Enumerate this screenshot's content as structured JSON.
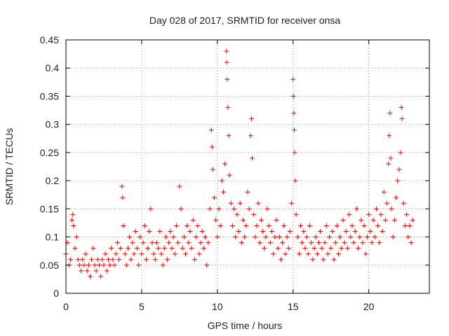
{
  "chart_data": {
    "type": "scatter",
    "title": "Day 028 of 2017, SRMTID for receiver onsa",
    "xlabel": "GPS time / hours",
    "ylabel": "SRMTID / TECUs",
    "xlim": [
      0,
      24
    ],
    "ylim": [
      0,
      0.45
    ],
    "xticks": [
      0,
      5,
      10,
      15,
      20
    ],
    "xtick_labels": [
      "0",
      "5",
      "10",
      "15",
      "20"
    ],
    "yticks": [
      0,
      0.05,
      0.1,
      0.15,
      0.2,
      0.25,
      0.3,
      0.35,
      0.4,
      0.45
    ],
    "ytick_labels": [
      "0",
      "0.05",
      "0.1",
      "0.15",
      "0.2",
      "0.25",
      "0.3",
      "0.35",
      "0.4",
      "0.45"
    ],
    "grid": true,
    "marker": "+",
    "color": "#ff0000",
    "series": [
      {
        "name": "SRMTID",
        "points": [
          [
            0.0,
            0.07
          ],
          [
            0.1,
            0.09
          ],
          [
            0.2,
            0.05
          ],
          [
            0.3,
            0.06
          ],
          [
            0.4,
            0.13
          ],
          [
            0.45,
            0.14
          ],
          [
            0.5,
            0.12
          ],
          [
            0.6,
            0.08
          ],
          [
            0.7,
            0.1
          ],
          [
            0.8,
            0.06
          ],
          [
            0.9,
            0.05
          ],
          [
            1.0,
            0.04
          ],
          [
            1.1,
            0.06
          ],
          [
            1.2,
            0.05
          ],
          [
            1.3,
            0.07
          ],
          [
            1.4,
            0.04
          ],
          [
            1.5,
            0.05
          ],
          [
            1.6,
            0.03
          ],
          [
            1.7,
            0.06
          ],
          [
            1.8,
            0.08
          ],
          [
            1.9,
            0.05
          ],
          [
            2.0,
            0.04
          ],
          [
            2.1,
            0.06
          ],
          [
            2.2,
            0.05
          ],
          [
            2.3,
            0.03
          ],
          [
            2.4,
            0.06
          ],
          [
            2.5,
            0.05
          ],
          [
            2.6,
            0.07
          ],
          [
            2.7,
            0.04
          ],
          [
            2.8,
            0.06
          ],
          [
            2.9,
            0.05
          ],
          [
            3.0,
            0.08
          ],
          [
            3.1,
            0.06
          ],
          [
            3.2,
            0.05
          ],
          [
            3.3,
            0.07
          ],
          [
            3.4,
            0.09
          ],
          [
            3.5,
            0.06
          ],
          [
            3.6,
            0.08
          ],
          [
            3.7,
            0.19
          ],
          [
            3.75,
            0.17
          ],
          [
            3.8,
            0.12
          ],
          [
            3.9,
            0.07
          ],
          [
            4.0,
            0.05
          ],
          [
            4.1,
            0.08
          ],
          [
            4.2,
            0.1
          ],
          [
            4.3,
            0.06
          ],
          [
            4.4,
            0.09
          ],
          [
            4.5,
            0.07
          ],
          [
            4.6,
            0.11
          ],
          [
            4.7,
            0.08
          ],
          [
            4.8,
            0.05
          ],
          [
            4.9,
            0.1
          ],
          [
            5.0,
            0.07
          ],
          [
            5.1,
            0.09
          ],
          [
            5.2,
            0.12
          ],
          [
            5.3,
            0.06
          ],
          [
            5.4,
            0.08
          ],
          [
            5.5,
            0.11
          ],
          [
            5.6,
            0.15
          ],
          [
            5.7,
            0.09
          ],
          [
            5.8,
            0.07
          ],
          [
            5.9,
            0.06
          ],
          [
            6.0,
            0.09
          ],
          [
            6.1,
            0.08
          ],
          [
            6.2,
            0.11
          ],
          [
            6.3,
            0.07
          ],
          [
            6.4,
            0.05
          ],
          [
            6.5,
            0.08
          ],
          [
            6.6,
            0.1
          ],
          [
            6.7,
            0.06
          ],
          [
            6.8,
            0.09
          ],
          [
            6.9,
            0.11
          ],
          [
            7.0,
            0.08
          ],
          [
            7.1,
            0.1
          ],
          [
            7.2,
            0.07
          ],
          [
            7.3,
            0.12
          ],
          [
            7.4,
            0.09
          ],
          [
            7.5,
            0.19
          ],
          [
            7.6,
            0.15
          ],
          [
            7.7,
            0.08
          ],
          [
            7.8,
            0.1
          ],
          [
            7.9,
            0.07
          ],
          [
            8.0,
            0.12
          ],
          [
            8.1,
            0.09
          ],
          [
            8.2,
            0.11
          ],
          [
            8.3,
            0.08
          ],
          [
            8.4,
            0.13
          ],
          [
            8.5,
            0.06
          ],
          [
            8.6,
            0.1
          ],
          [
            8.7,
            0.12
          ],
          [
            8.8,
            0.07
          ],
          [
            8.9,
            0.09
          ],
          [
            9.0,
            0.11
          ],
          [
            9.1,
            0.08
          ],
          [
            9.2,
            0.1
          ],
          [
            9.3,
            0.05
          ],
          [
            9.4,
            0.09
          ],
          [
            9.5,
            0.15
          ],
          [
            9.6,
            0.29
          ],
          [
            9.65,
            0.26
          ],
          [
            9.7,
            0.22
          ],
          [
            9.8,
            0.17
          ],
          [
            9.9,
            0.13
          ],
          [
            10.0,
            0.1
          ],
          [
            10.1,
            0.15
          ],
          [
            10.2,
            0.12
          ],
          [
            10.3,
            0.2
          ],
          [
            10.4,
            0.18
          ],
          [
            10.5,
            0.23
          ],
          [
            10.6,
            0.43
          ],
          [
            10.62,
            0.41
          ],
          [
            10.65,
            0.38
          ],
          [
            10.7,
            0.33
          ],
          [
            10.75,
            0.28
          ],
          [
            10.8,
            0.21
          ],
          [
            10.9,
            0.16
          ],
          [
            11.0,
            0.12
          ],
          [
            11.1,
            0.15
          ],
          [
            11.2,
            0.1
          ],
          [
            11.3,
            0.14
          ],
          [
            11.4,
            0.11
          ],
          [
            11.5,
            0.16
          ],
          [
            11.6,
            0.09
          ],
          [
            11.7,
            0.13
          ],
          [
            11.8,
            0.1
          ],
          [
            11.9,
            0.12
          ],
          [
            12.0,
            0.18
          ],
          [
            12.1,
            0.15
          ],
          [
            12.2,
            0.28
          ],
          [
            12.25,
            0.31
          ],
          [
            12.3,
            0.24
          ],
          [
            12.4,
            0.14
          ],
          [
            12.5,
            0.1
          ],
          [
            12.6,
            0.12
          ],
          [
            12.7,
            0.16
          ],
          [
            12.8,
            0.09
          ],
          [
            12.9,
            0.13
          ],
          [
            13.0,
            0.11
          ],
          [
            13.1,
            0.08
          ],
          [
            13.2,
            0.1
          ],
          [
            13.3,
            0.15
          ],
          [
            13.4,
            0.12
          ],
          [
            13.5,
            0.09
          ],
          [
            13.6,
            0.11
          ],
          [
            13.7,
            0.07
          ],
          [
            13.8,
            0.1
          ],
          [
            13.9,
            0.13
          ],
          [
            14.0,
            0.08
          ],
          [
            14.1,
            0.1
          ],
          [
            14.2,
            0.06
          ],
          [
            14.3,
            0.09
          ],
          [
            14.4,
            0.12
          ],
          [
            14.5,
            0.07
          ],
          [
            14.6,
            0.1
          ],
          [
            14.7,
            0.08
          ],
          [
            14.8,
            0.11
          ],
          [
            14.9,
            0.16
          ],
          [
            15.0,
            0.38
          ],
          [
            15.02,
            0.35
          ],
          [
            15.05,
            0.32
          ],
          [
            15.08,
            0.29
          ],
          [
            15.1,
            0.25
          ],
          [
            15.15,
            0.2
          ],
          [
            15.2,
            0.14
          ],
          [
            15.3,
            0.1
          ],
          [
            15.4,
            0.07
          ],
          [
            15.5,
            0.12
          ],
          [
            15.6,
            0.09
          ],
          [
            15.7,
            0.11
          ],
          [
            15.8,
            0.08
          ],
          [
            15.9,
            0.1
          ],
          [
            16.0,
            0.07
          ],
          [
            16.1,
            0.12
          ],
          [
            16.2,
            0.09
          ],
          [
            16.3,
            0.06
          ],
          [
            16.4,
            0.08
          ],
          [
            16.5,
            0.1
          ],
          [
            16.6,
            0.07
          ],
          [
            16.7,
            0.09
          ],
          [
            16.8,
            0.11
          ],
          [
            16.9,
            0.08
          ],
          [
            17.0,
            0.06
          ],
          [
            17.1,
            0.09
          ],
          [
            17.2,
            0.12
          ],
          [
            17.3,
            0.07
          ],
          [
            17.4,
            0.1
          ],
          [
            17.5,
            0.08
          ],
          [
            17.6,
            0.11
          ],
          [
            17.7,
            0.06
          ],
          [
            17.8,
            0.09
          ],
          [
            17.9,
            0.12
          ],
          [
            18.0,
            0.07
          ],
          [
            18.1,
            0.1
          ],
          [
            18.2,
            0.08
          ],
          [
            18.3,
            0.13
          ],
          [
            18.4,
            0.09
          ],
          [
            18.5,
            0.11
          ],
          [
            18.6,
            0.08
          ],
          [
            18.7,
            0.14
          ],
          [
            18.8,
            0.1
          ],
          [
            18.9,
            0.12
          ],
          [
            19.0,
            0.09
          ],
          [
            19.1,
            0.11
          ],
          [
            19.2,
            0.15
          ],
          [
            19.3,
            0.08
          ],
          [
            19.4,
            0.1
          ],
          [
            19.5,
            0.13
          ],
          [
            19.6,
            0.09
          ],
          [
            19.7,
            0.12
          ],
          [
            19.8,
            0.07
          ],
          [
            19.9,
            0.1
          ],
          [
            20.0,
            0.14
          ],
          [
            20.1,
            0.11
          ],
          [
            20.2,
            0.09
          ],
          [
            20.3,
            0.13
          ],
          [
            20.4,
            0.1
          ],
          [
            20.5,
            0.15
          ],
          [
            20.6,
            0.12
          ],
          [
            20.7,
            0.09
          ],
          [
            20.8,
            0.14
          ],
          [
            20.9,
            0.11
          ],
          [
            21.0,
            0.18
          ],
          [
            21.1,
            0.13
          ],
          [
            21.2,
            0.16
          ],
          [
            21.3,
            0.23
          ],
          [
            21.35,
            0.28
          ],
          [
            21.4,
            0.32
          ],
          [
            21.45,
            0.24
          ],
          [
            21.5,
            0.15
          ],
          [
            21.6,
            0.1
          ],
          [
            21.7,
            0.13
          ],
          [
            21.8,
            0.17
          ],
          [
            21.9,
            0.2
          ],
          [
            22.0,
            0.22
          ],
          [
            22.1,
            0.25
          ],
          [
            22.15,
            0.33
          ],
          [
            22.2,
            0.31
          ],
          [
            22.3,
            0.16
          ],
          [
            22.4,
            0.12
          ],
          [
            22.5,
            0.14
          ],
          [
            22.6,
            0.1
          ],
          [
            22.7,
            0.12
          ],
          [
            22.8,
            0.09
          ],
          [
            22.9,
            0.13
          ]
        ]
      }
    ]
  }
}
